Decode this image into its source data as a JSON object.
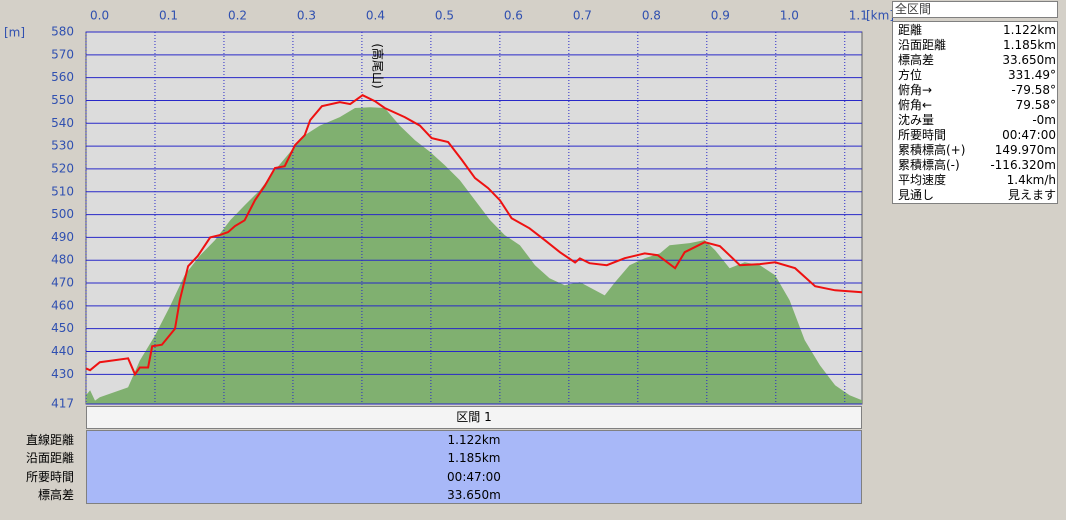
{
  "chart_data": {
    "type": "profile",
    "x_label": "[km]",
    "y_label": "[m]",
    "annotation": "(高尾山)",
    "xlim": [
      0,
      1.125
    ],
    "ylim": [
      417,
      580
    ],
    "xticks": [
      {
        "value": 0,
        "label": "0.0"
      },
      0.1,
      0.2,
      0.3,
      0.4,
      0.5,
      0.6,
      0.7,
      0.8,
      0.9,
      {
        "value": 1,
        "label": "1.0"
      },
      1.1
    ],
    "yticks": [
      417,
      430,
      440,
      450,
      460,
      470,
      480,
      490,
      500,
      510,
      520,
      530,
      540,
      550,
      560,
      570,
      580
    ],
    "series": [
      {
        "kind": "area",
        "color": "#80b070",
        "x": [
          0,
          0.006,
          0.013,
          0.02,
          0.061,
          0.078,
          0.1,
          0.122,
          0.143,
          0.165,
          0.187,
          0.209,
          0.23,
          0.252,
          0.274,
          0.296,
          0.317,
          0.339,
          0.368,
          0.39,
          0.412,
          0.433,
          0.455,
          0.477,
          0.499,
          0.52,
          0.542,
          0.564,
          0.586,
          0.607,
          0.629,
          0.651,
          0.672,
          0.694,
          0.716,
          0.738,
          0.752,
          0.767,
          0.788,
          0.81,
          0.832,
          0.846,
          0.875,
          0.897,
          0.912,
          0.933,
          0.955,
          0.977,
          0.999,
          1.02,
          1.042,
          1.064,
          1.086,
          1.107,
          1.125
        ],
        "values": [
          420.8,
          423,
          418.5,
          420,
          424.3,
          436,
          447,
          460,
          473.4,
          482,
          488.8,
          497.5,
          504,
          510.7,
          519.5,
          527.4,
          534.8,
          539,
          542.7,
          546.7,
          547,
          546.7,
          539,
          532.6,
          527.4,
          521.7,
          515,
          506.3,
          497.5,
          491,
          486.6,
          477.8,
          472.1,
          469,
          470.4,
          466.8,
          464.6,
          470.4,
          477.8,
          480.9,
          483,
          486.6,
          487.5,
          488.8,
          484.4,
          476.5,
          479.1,
          477.8,
          473.4,
          462.5,
          445,
          434,
          425.2,
          420.8,
          418.6
        ]
      },
      {
        "kind": "line",
        "color": "#ee1111",
        "x": [
          0,
          0.006,
          0.02,
          0.061,
          0.071,
          0.078,
          0.09,
          0.096,
          0.11,
          0.129,
          0.136,
          0.148,
          0.162,
          0.18,
          0.194,
          0.206,
          0.216,
          0.23,
          0.245,
          0.259,
          0.274,
          0.288,
          0.303,
          0.317,
          0.325,
          0.342,
          0.368,
          0.383,
          0.401,
          0.419,
          0.433,
          0.462,
          0.484,
          0.501,
          0.525,
          0.545,
          0.564,
          0.583,
          0.6,
          0.617,
          0.643,
          0.665,
          0.687,
          0.709,
          0.716,
          0.73,
          0.755,
          0.781,
          0.81,
          0.829,
          0.854,
          0.868,
          0.897,
          0.919,
          0.948,
          0.977,
          0.999,
          1.028,
          1.057,
          1.086,
          1.125
        ],
        "values": [
          432.6,
          431.8,
          435.3,
          437,
          430,
          433,
          433,
          442.3,
          443,
          450,
          462.5,
          477.4,
          481.8,
          490,
          491,
          492.3,
          495,
          497.5,
          506.3,
          512.5,
          520.4,
          521.2,
          530.4,
          534.8,
          541.4,
          547.5,
          549.3,
          548.4,
          552.3,
          549.7,
          546.7,
          542.7,
          539,
          533.5,
          531.8,
          523.9,
          516,
          511.6,
          506.3,
          498.4,
          494,
          488.8,
          483.5,
          479,
          480.8,
          478.7,
          477.8,
          480.9,
          483,
          482.2,
          476.5,
          483.5,
          487.9,
          486.2,
          477.8,
          478.3,
          479.1,
          476.5,
          468.6,
          466.8,
          466
        ]
      }
    ]
  },
  "panel": {
    "title": "全区間",
    "rows": [
      [
        "距離",
        "1.122km"
      ],
      [
        "沿面距離",
        "1.185km"
      ],
      [
        "標高差",
        "33.650m"
      ],
      [
        "方位",
        "331.49°"
      ],
      [
        "俯角→",
        "-79.58°"
      ],
      [
        "俯角←",
        "79.58°"
      ],
      [
        "沈み量",
        "-0m"
      ],
      [
        "所要時間",
        "00:47:00"
      ],
      [
        "累積標高(+)",
        "149.970m"
      ],
      [
        "累積標高(-)",
        "-116.320m"
      ],
      [
        "平均速度",
        "1.4km/h"
      ],
      [
        "見通し",
        "見えます"
      ]
    ]
  },
  "table": {
    "header": "区間 1",
    "rows": [
      [
        "直線距離",
        "1.122km"
      ],
      [
        "沿面距離",
        "1.185km"
      ],
      [
        "所要時間",
        "00:47:00"
      ],
      [
        "標高差",
        "33.650m"
      ]
    ]
  }
}
